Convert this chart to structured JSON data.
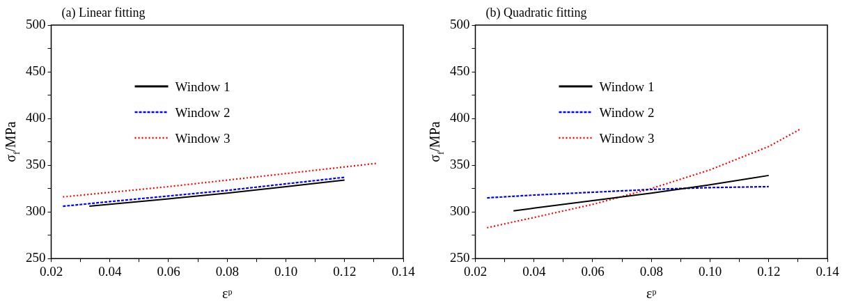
{
  "chart_data": [
    {
      "type": "line",
      "title": "(a) Linear fitting",
      "xlabel": "εᵖ",
      "ylabel": "σ$_{f}$/MPa",
      "legend": "top left",
      "grid": false,
      "marker": "none",
      "xlim": [
        0.02,
        0.14
      ],
      "xticks": [
        0.02,
        {
          "value": 0.03,
          "label": null
        },
        0.04,
        {
          "value": 0.05,
          "label": null
        },
        0.06,
        {
          "value": 0.07,
          "label": null
        },
        0.08,
        {
          "value": 0.09,
          "label": null
        },
        {
          "value": 0.1,
          "label": "0.10"
        },
        {
          "value": 0.11,
          "label": null
        },
        0.12,
        {
          "value": 0.13,
          "label": null
        },
        0.14
      ],
      "ylim": [
        250,
        500
      ],
      "yticks": [
        250,
        {
          "value": 275,
          "label": null
        },
        300,
        {
          "value": 325,
          "label": null
        },
        350,
        {
          "value": 375,
          "label": null
        },
        400,
        {
          "value": 425,
          "label": null
        },
        450,
        {
          "value": 475,
          "label": null
        },
        500
      ],
      "series": [
        {
          "name": "Window 1",
          "color": "#000000",
          "line_style": "solid",
          "x": [
            0.033,
            0.06,
            0.08,
            0.1,
            0.12
          ],
          "values": [
            306,
            314,
            320,
            327,
            334
          ]
        },
        {
          "name": "Window 2",
          "color": "#0000ff",
          "line_style": "dashed",
          "x": [
            0.024,
            0.04,
            0.06,
            0.08,
            0.1,
            0.12
          ],
          "values": [
            306,
            311,
            317,
            323,
            330,
            337
          ]
        },
        {
          "name": "Window 3",
          "color": "#ff0000",
          "line_style": "dotted",
          "x": [
            0.024,
            0.06,
            0.1,
            0.131
          ],
          "values": [
            316,
            327,
            341,
            352
          ]
        }
      ]
    },
    {
      "type": "line",
      "title": "(b) Quadratic fitting",
      "xlabel": "εᵖ",
      "ylabel": "σ$_{f}$/MPa",
      "legend": "top left",
      "grid": false,
      "marker": "none",
      "xlim": [
        0.02,
        0.14
      ],
      "xticks": [
        0.02,
        {
          "value": 0.03,
          "label": null
        },
        0.04,
        {
          "value": 0.05,
          "label": null
        },
        0.06,
        {
          "value": 0.07,
          "label": null
        },
        0.08,
        {
          "value": 0.09,
          "label": null
        },
        {
          "value": 0.1,
          "label": "0.10"
        },
        {
          "value": 0.11,
          "label": null
        },
        0.12,
        {
          "value": 0.13,
          "label": null
        },
        0.14
      ],
      "ylim": [
        250,
        500
      ],
      "yticks": [
        250,
        {
          "value": 275,
          "label": null
        },
        300,
        {
          "value": 325,
          "label": null
        },
        350,
        {
          "value": 375,
          "label": null
        },
        400,
        {
          "value": 425,
          "label": null
        },
        450,
        {
          "value": 475,
          "label": null
        },
        500
      ],
      "series": [
        {
          "name": "Window 1",
          "color": "#000000",
          "line_style": "solid",
          "x": [
            0.033,
            0.04,
            0.06,
            0.08,
            0.1,
            0.12
          ],
          "values": [
            301,
            304,
            312,
            320,
            329,
            339
          ]
        },
        {
          "name": "Window 2",
          "color": "#0000ff",
          "line_style": "dashed",
          "x": [
            0.024,
            0.04,
            0.06,
            0.08,
            0.1,
            0.12
          ],
          "values": [
            315,
            318,
            321,
            324,
            326,
            327
          ]
        },
        {
          "name": "Window 3",
          "color": "#ff0000",
          "line_style": "dotted",
          "x": [
            0.024,
            0.04,
            0.06,
            0.08,
            0.1,
            0.12,
            0.131
          ],
          "values": [
            283,
            294,
            308,
            325,
            345,
            370,
            389
          ]
        }
      ]
    }
  ]
}
